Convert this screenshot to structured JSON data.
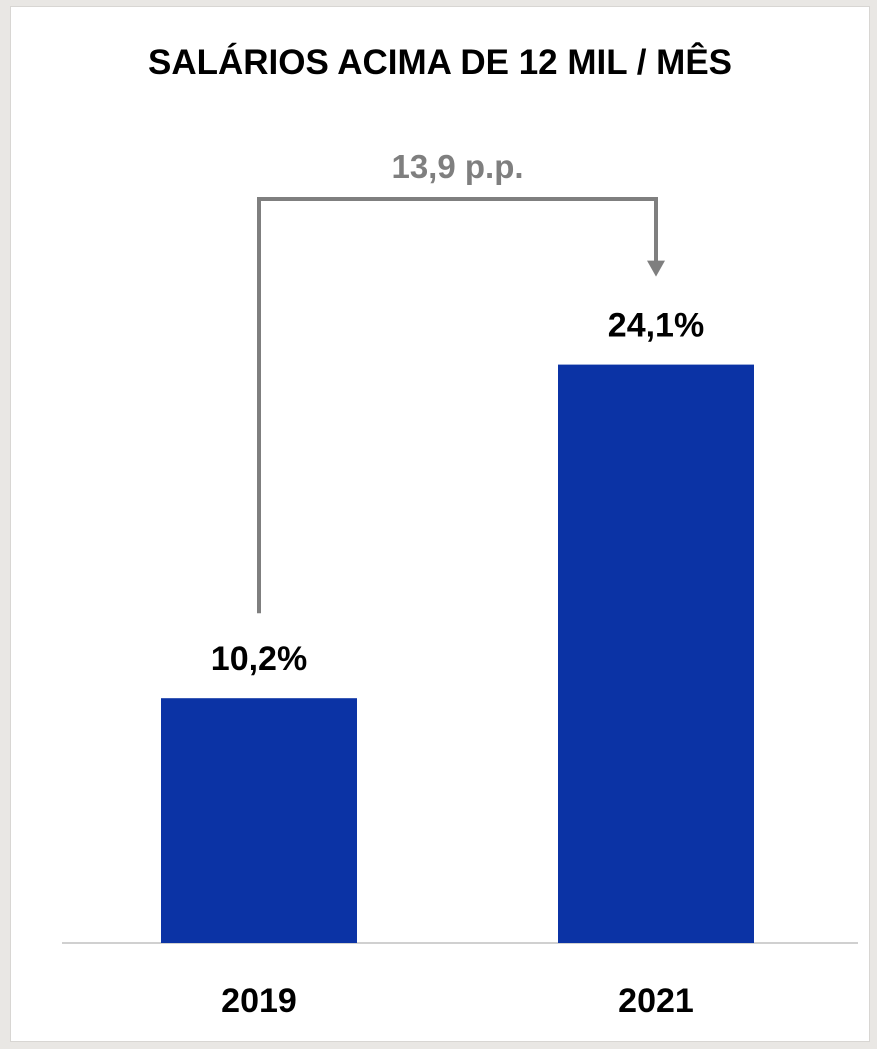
{
  "chart_data": {
    "type": "bar",
    "title": "SALÁRIOS ACIMA DE 12 MIL / MÊS",
    "categories": [
      "2019",
      "2021"
    ],
    "values": [
      10.2,
      24.1
    ],
    "value_labels": [
      "10,2%",
      "24,1%"
    ],
    "unit": "%",
    "ylim": [
      0,
      25
    ],
    "grid": false,
    "annotation": {
      "text": "13,9 p.p.",
      "from": "2019",
      "to": "2021"
    }
  },
  "colors": {
    "bar": "#0b33a5",
    "annotation": "#7f7f7f",
    "baseline": "#d0d0d0",
    "text": "#000000"
  }
}
